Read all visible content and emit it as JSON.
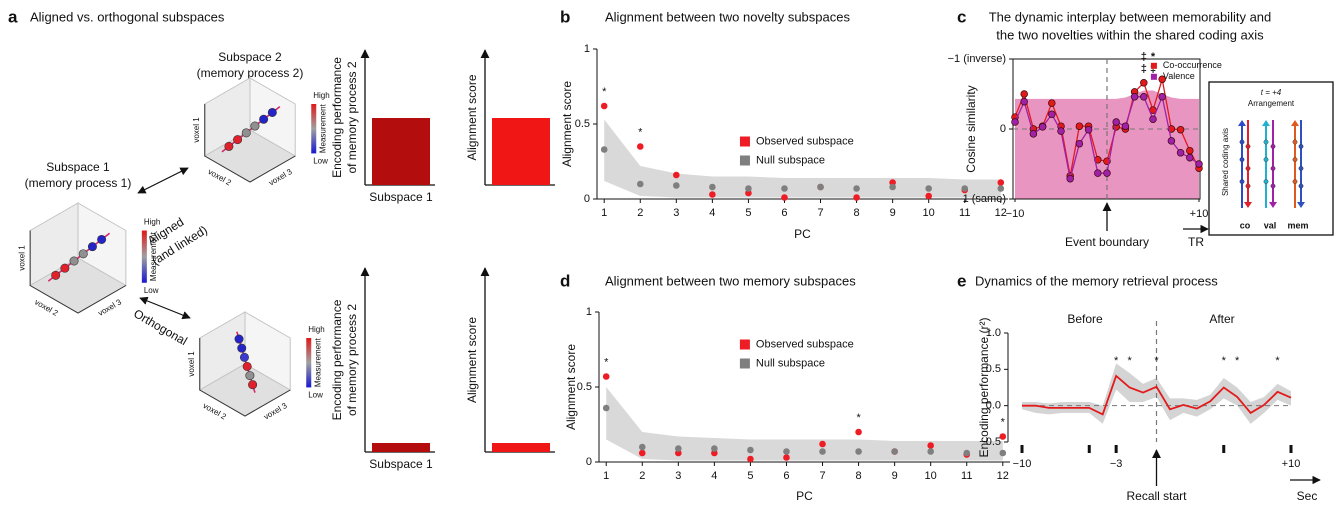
{
  "panel_a": {
    "label": "a",
    "title": "Aligned vs. orthogonal subspaces",
    "cubes": [
      {
        "title": [
          "Subspace 2",
          "(memory process 2)"
        ],
        "axes": [
          "voxel 1",
          "voxel 2",
          "voxel 3"
        ],
        "scale": {
          "high": "High",
          "label": "Measurement",
          "low": "Low"
        }
      },
      {
        "title": [
          "Subspace 1",
          "(memory process 1)"
        ],
        "axes": [
          "voxel 1",
          "voxel 2",
          "voxel 3"
        ],
        "scale": {
          "high": "High",
          "label": "Measurement",
          "low": "Low"
        }
      },
      {
        "axes": [
          "voxel 1",
          "voxel 2",
          "voxel 3"
        ],
        "scale": {
          "high": "High",
          "label": "Measurement",
          "low": "Low"
        }
      }
    ],
    "relations": [
      [
        "Aligned",
        "(and linked)"
      ],
      [
        "Orthogonal"
      ]
    ],
    "bar_panels": [
      {
        "ylabel": [
          "Encoding performance",
          "of memory process 2"
        ],
        "xlabel": "Subspace 1",
        "color": "#b30d0d"
      },
      {
        "ylabel": [
          "Alignment score"
        ],
        "color": "#f01616"
      },
      {
        "ylabel": [
          "Encoding performance",
          "of memory process 2"
        ],
        "xlabel": "Subspace 1",
        "color": "#b30d0d"
      },
      {
        "ylabel": [
          "Alignment score"
        ],
        "color": "#f01616"
      }
    ]
  },
  "chart_data": [
    {
      "label": "b",
      "type": "scatter",
      "title": [
        "Alignment between two novelty subspaces"
      ],
      "xlabel": "PC",
      "ylabel": "Alignment score",
      "x": [
        1,
        2,
        3,
        4,
        5,
        6,
        7,
        8,
        9,
        10,
        11,
        12
      ],
      "xlim": [
        0.8,
        12.2
      ],
      "xticks": [
        1,
        2,
        3,
        4,
        5,
        6,
        7,
        8,
        9,
        10,
        11,
        12
      ],
      "ylim": [
        0,
        1
      ],
      "yticks": [
        0,
        0.5,
        1
      ],
      "band": {
        "color": "#d9d9d9",
        "upper": [
          0.53,
          0.22,
          0.17,
          0.15,
          0.15,
          0.14,
          0.14,
          0.14,
          0.14,
          0.14,
          0.13,
          0.13
        ],
        "lower": [
          0.12,
          0.02,
          0.01,
          0.01,
          0.01,
          0.01,
          0.01,
          0.01,
          0.01,
          0.01,
          0.01,
          0.01
        ]
      },
      "series": [
        {
          "name": "Observed subspace",
          "color": "#ee1c25",
          "values": [
            0.62,
            0.35,
            0.16,
            0.03,
            0.04,
            0.01,
            0.08,
            0.01,
            0.11,
            0.02,
            0.06,
            0.11
          ]
        },
        {
          "name": "Null subspace",
          "color": "#7f7f7f",
          "values": [
            0.33,
            0.1,
            0.09,
            0.08,
            0.07,
            0.07,
            0.08,
            0.07,
            0.08,
            0.07,
            0.07,
            0.07
          ]
        }
      ],
      "stars": {
        "x": [
          1,
          2
        ],
        "labels": [
          "*",
          "*"
        ]
      },
      "legend": "center"
    },
    {
      "label": "c",
      "type": "line",
      "title": [
        "The dynamic interplay between memorability and",
        "the two novelties within the shared coding axis"
      ],
      "xlabel": "TR",
      "ylabel": "Cosine similarity",
      "frame": true,
      "markers": true,
      "x": [
        -10,
        -9,
        -8,
        -7,
        -6,
        -5,
        -4,
        -3,
        -2,
        -1,
        0,
        1,
        2,
        3,
        4,
        5,
        6,
        7,
        8,
        9,
        10
      ],
      "xlim": [
        -10,
        10
      ],
      "xticks": [
        {
          "value": -10,
          "label": "−10"
        },
        {
          "value": 10,
          "label": "+10"
        }
      ],
      "ylim": [
        -1,
        1
      ],
      "inverted": true,
      "yticks": [
        {
          "value": -1,
          "label": "−1 (inverse)"
        },
        0,
        {
          "value": 1,
          "label": "1 (same)"
        }
      ],
      "area": {
        "color": "#e47ab3",
        "values": [
          -0.43,
          -0.43,
          -0.43,
          -0.43,
          -0.43,
          -0.43,
          -0.43,
          -0.43,
          -0.43,
          -0.43,
          -0.43,
          -0.43,
          -0.45,
          -0.5,
          -0.55,
          -0.55,
          -0.5,
          -0.45,
          -0.43,
          -0.43,
          -0.43
        ]
      },
      "series": [
        {
          "name": "Co-occurrence",
          "color": "#e31a1c",
          "values": [
            -0.17,
            -0.5,
            0,
            -0.04,
            -0.37,
            -0.04,
            0.67,
            -0.04,
            -0.04,
            0.44,
            0.46,
            -0.03,
            0,
            -0.53,
            -0.66,
            -0.27,
            -0.71,
            0,
            0.01,
            0.31,
            0.56
          ],
          "stars": {
            "x": [
              4,
              5
            ],
            "labels": [
              "‡",
              "*"
            ]
          }
        },
        {
          "name": "Valence",
          "color": "#a020a8",
          "values": [
            -0.1,
            -0.39,
            0.07,
            -0.03,
            -0.21,
            0.03,
            0.71,
            0.21,
            0.01,
            0.63,
            0.63,
            -0.1,
            -0.04,
            -0.46,
            -0.46,
            -0.14,
            -0.46,
            0.17,
            0.34,
            0.41,
            0.5
          ],
          "stars": {
            "x": [
              4,
              5
            ],
            "labels": [
              "‡",
              "‡"
            ]
          }
        }
      ],
      "event": {
        "x": 0,
        "label": "Event boundary"
      },
      "legend": "upper-right",
      "inset": {
        "title": "t = +4",
        "subtitle": "Arrangement",
        "axis_label": "Shared coding axis",
        "labels": [
          "co",
          "val",
          "mem"
        ],
        "colors": [
          "#e31a1c",
          "#a020a8",
          "#b01010"
        ]
      }
    },
    {
      "label": "d",
      "type": "scatter",
      "title": [
        "Alignment between two memory subspaces"
      ],
      "xlabel": "PC",
      "ylabel": "Alignment score",
      "x": [
        1,
        2,
        3,
        4,
        5,
        6,
        7,
        8,
        9,
        10,
        11,
        12
      ],
      "xlim": [
        0.8,
        12.2
      ],
      "xticks": [
        1,
        2,
        3,
        4,
        5,
        6,
        7,
        8,
        9,
        10,
        11,
        12
      ],
      "ylim": [
        0,
        1
      ],
      "yticks": [
        0,
        0.5,
        1
      ],
      "band": {
        "color": "#d9d9d9",
        "upper": [
          0.5,
          0.2,
          0.17,
          0.16,
          0.15,
          0.15,
          0.15,
          0.15,
          0.14,
          0.14,
          0.14,
          0.14
        ],
        "lower": [
          0.15,
          0.02,
          0.01,
          0.01,
          0.01,
          0.01,
          0.01,
          0.01,
          0.01,
          0.01,
          0.01,
          0.01
        ]
      },
      "series": [
        {
          "name": "Observed subspace",
          "color": "#ee1c25",
          "values": [
            0.57,
            0.06,
            0.06,
            0.06,
            0.02,
            0.03,
            0.12,
            0.2,
            0.07,
            0.11,
            0.05,
            0.17
          ]
        },
        {
          "name": "Null subspace",
          "color": "#7f7f7f",
          "values": [
            0.36,
            0.1,
            0.09,
            0.09,
            0.08,
            0.07,
            0.07,
            0.07,
            0.07,
            0.07,
            0.06,
            0.06
          ]
        }
      ],
      "stars": {
        "x": [
          1,
          8,
          12
        ],
        "labels": [
          "*",
          "*",
          "*"
        ]
      },
      "legend": "upper-center"
    },
    {
      "label": "e",
      "type": "line",
      "title": [
        "Dynamics of the memory retrieval process"
      ],
      "xlabel": "Sec",
      "ylabel": "Encoding performance (r²)",
      "x": [
        -10,
        -9,
        -8,
        -7,
        -6,
        -5,
        -4,
        -3,
        -2,
        -1,
        0,
        1,
        2,
        3,
        4,
        5,
        6,
        7,
        8,
        9,
        10
      ],
      "xlim": [
        -10,
        10
      ],
      "xticks": [
        {
          "value": -10,
          "label": "−10"
        },
        {
          "value": -5,
          "label": null
        },
        {
          "value": -3,
          "label": "−3"
        },
        {
          "value": 5,
          "label": null
        },
        {
          "value": 10,
          "label": "+10"
        }
      ],
      "ylim": [
        -0.5,
        1
      ],
      "yticks": [
        {
          "value": -0.5,
          "label": "−0.5"
        },
        {
          "value": 0,
          "label": "0.0"
        },
        0.5,
        {
          "value": 1,
          "label": "1.0"
        }
      ],
      "band": {
        "color": "#d4d4d4",
        "upper": [
          0.05,
          0.05,
          0.03,
          0.05,
          0.05,
          0.05,
          0.0,
          0.58,
          0.45,
          0.3,
          0.38,
          0.1,
          0.1,
          0.08,
          0.15,
          0.38,
          0.25,
          0.05,
          0.12,
          0.3,
          0.2
        ],
        "lower": [
          -0.05,
          -0.1,
          -0.12,
          -0.1,
          -0.1,
          -0.1,
          -0.25,
          0.22,
          0.05,
          0.05,
          0.12,
          -0.2,
          -0.1,
          -0.15,
          -0.05,
          0.1,
          0.0,
          -0.25,
          -0.1,
          0.08,
          0.0
        ]
      },
      "series": [
        {
          "color": "#e31a1c",
          "values": [
            0,
            0,
            -0.03,
            -0.03,
            -0.03,
            -0.03,
            -0.12,
            0.41,
            0.25,
            0.18,
            0.26,
            -0.05,
            0.01,
            -0.04,
            0.06,
            0.25,
            0.12,
            -0.1,
            0.01,
            0.19,
            0.11
          ]
        }
      ],
      "stars": {
        "x": [
          -3,
          -2,
          0,
          5,
          6,
          9
        ],
        "labels": [
          "*",
          "*",
          "*",
          "*",
          "*",
          "*"
        ]
      },
      "phases": [
        "Before",
        "After"
      ],
      "event": {
        "x": 0,
        "label": "Recall start"
      }
    }
  ]
}
